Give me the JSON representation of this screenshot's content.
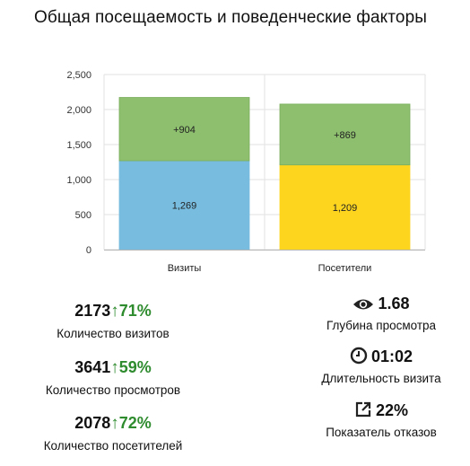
{
  "title": "Общая посещаемость и поведенческие факторы",
  "chart_data": {
    "type": "bar",
    "stacked": true,
    "categories": [
      "Визиты",
      "Посетители"
    ],
    "series": [
      {
        "values": [
          1269,
          1209
        ],
        "labels": [
          "1,269",
          "1,209"
        ]
      },
      {
        "values": [
          904,
          869
        ],
        "labels": [
          "+904",
          "+869"
        ]
      }
    ],
    "bar_colors": {
      "bottom": [
        "#78bde0",
        "#fdd51e"
      ],
      "top": "#8dbf6e"
    },
    "ylim": [
      0,
      2500
    ],
    "yticks": [
      "0",
      "500",
      "1,000",
      "1,500",
      "2,000",
      "2,500"
    ],
    "grid": true
  },
  "left_stats": [
    {
      "value": "2173",
      "arrow": "↑",
      "pct": "71%",
      "caption": "Количество визитов"
    },
    {
      "value": "3641",
      "arrow": "↑",
      "pct": "59%",
      "caption": "Количество просмотров"
    },
    {
      "value": "2078",
      "arrow": "↑",
      "pct": "72%",
      "caption": "Количество посетителей"
    }
  ],
  "right_stats": [
    {
      "icon": "eye-icon",
      "value": "1.68",
      "caption": "Глубина просмотра"
    },
    {
      "icon": "clock-icon",
      "value": "01:02",
      "caption": "Длительность визита"
    },
    {
      "icon": "external-link-icon",
      "value": "22%",
      "caption": "Показатель отказов"
    }
  ]
}
